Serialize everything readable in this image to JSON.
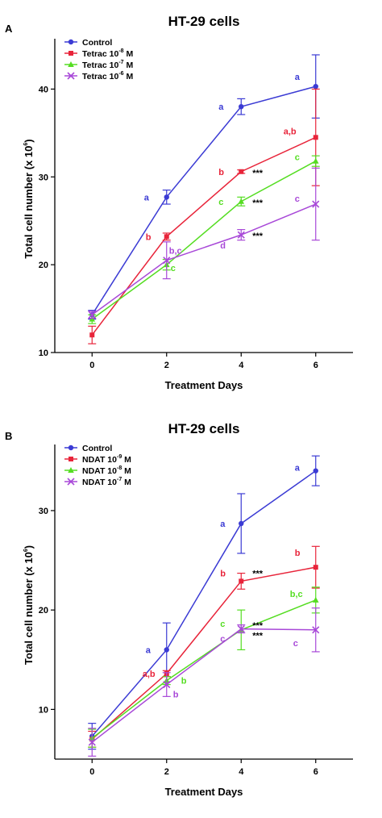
{
  "chart_data": [
    {
      "type": "line",
      "panel_label": "A",
      "title": "HT-29 cells",
      "xlabel": "Treatment Days",
      "ylabel_main": "Total cell number (x 10",
      "ylabel_sup": "6",
      "ylabel_end": ")",
      "x": [
        0,
        2,
        4,
        6
      ],
      "x_ticks": [
        "0",
        "2",
        "4",
        "6"
      ],
      "xlim": [
        -1,
        7
      ],
      "ylim": [
        10,
        45
      ],
      "y_ticks": [
        10,
        20,
        30,
        40
      ],
      "y_tick_labels": [
        "10",
        "20",
        "30",
        "40"
      ],
      "legend_position": "top-left",
      "series": [
        {
          "name": "Control",
          "legend_base": "Control",
          "legend_sup": "",
          "legend_end": "",
          "color": "#3b3bd4",
          "marker": "circle",
          "values": [
            14.3,
            27.7,
            38.0,
            40.3
          ],
          "errors": [
            0.5,
            0.8,
            0.9,
            3.6
          ]
        },
        {
          "name": "Tetrac 10-8 M",
          "legend_base": "Tetrac 10",
          "legend_sup": "-8",
          "legend_end": " M",
          "color": "#e8243a",
          "marker": "square",
          "values": [
            12.0,
            23.2,
            30.6,
            34.5
          ],
          "errors": [
            1.0,
            0.4,
            0.2,
            5.5
          ]
        },
        {
          "name": "Tetrac 10-7 M",
          "legend_base": "Tetrac 10",
          "legend_sup": "-7",
          "legend_end": " M",
          "color": "#55dd22",
          "marker": "triangle",
          "values": [
            13.8,
            20.0,
            27.2,
            31.8
          ],
          "errors": [
            0.5,
            0.6,
            0.5,
            0.6
          ]
        },
        {
          "name": "Tetrac 10-6 M",
          "legend_base": "Tetrac 10",
          "legend_sup": "-6",
          "legend_end": " M",
          "color": "#a848d8",
          "marker": "cross",
          "values": [
            14.3,
            20.5,
            23.4,
            26.9
          ],
          "errors": [
            0.4,
            2.1,
            0.6,
            4.1
          ]
        }
      ],
      "annotations": [
        {
          "text": "a",
          "x": 2,
          "y": 27.7,
          "color": "#3b3bd4",
          "dx": -28,
          "dy": 4
        },
        {
          "text": "a",
          "x": 4,
          "y": 38.0,
          "color": "#3b3bd4",
          "dx": -28,
          "dy": 4
        },
        {
          "text": "a",
          "x": 6,
          "y": 40.3,
          "color": "#3b3bd4",
          "dx": -26,
          "dy": -8
        },
        {
          "text": "b",
          "x": 2,
          "y": 23.2,
          "color": "#e8243a",
          "dx": -26,
          "dy": 4
        },
        {
          "text": "b",
          "x": 4,
          "y": 30.6,
          "color": "#e8243a",
          "dx": -28,
          "dy": 4
        },
        {
          "text": "a,b",
          "x": 6,
          "y": 34.5,
          "color": "#e8243a",
          "dx": -40,
          "dy": -4
        },
        {
          "text": "b,c",
          "x": 2,
          "y": 20.5,
          "color": "#a848d8",
          "dx": 3,
          "dy": -8
        },
        {
          "text": "c",
          "x": 2,
          "y": 20.0,
          "color": "#55dd22",
          "dx": 5,
          "dy": 8
        },
        {
          "text": "c",
          "x": 4,
          "y": 27.2,
          "color": "#55dd22",
          "dx": -28,
          "dy": 4
        },
        {
          "text": "c",
          "x": 6,
          "y": 31.8,
          "color": "#55dd22",
          "dx": -26,
          "dy": -1
        },
        {
          "text": "d",
          "x": 4,
          "y": 23.4,
          "color": "#a848d8",
          "dx": -26,
          "dy": 17
        },
        {
          "text": "c",
          "x": 6,
          "y": 26.9,
          "color": "#a848d8",
          "dx": -26,
          "dy": -3
        }
      ],
      "stars": [
        {
          "text": "***",
          "x": 4,
          "y": 30.6,
          "dx": 14,
          "dy": 5
        },
        {
          "text": "***",
          "x": 4,
          "y": 27.2,
          "dx": 14,
          "dy": 5
        },
        {
          "text": "***",
          "x": 4,
          "y": 23.4,
          "dx": 14,
          "dy": 5
        }
      ]
    },
    {
      "type": "line",
      "panel_label": "B",
      "title": "HT-29 cells",
      "xlabel": "Treatment Days",
      "ylabel_main": "Total cell number (x 10",
      "ylabel_sup": "6",
      "ylabel_end": ")",
      "x": [
        0,
        2,
        4,
        6
      ],
      "x_ticks": [
        "0",
        "2",
        "4",
        "6"
      ],
      "xlim": [
        -1,
        7
      ],
      "ylim": [
        5,
        36
      ],
      "y_ticks": [
        10,
        20,
        30
      ],
      "y_tick_labels": [
        "10",
        "20",
        "30"
      ],
      "legend_position": "top-left",
      "series": [
        {
          "name": "Control",
          "legend_base": "Control",
          "legend_sup": "",
          "legend_end": "",
          "color": "#3b3bd4",
          "marker": "circle",
          "values": [
            7.3,
            16.0,
            28.7,
            34.0
          ],
          "errors": [
            1.3,
            2.7,
            3.0,
            1.5
          ]
        },
        {
          "name": "NDAT 10-9 M",
          "legend_base": "NDAT 10",
          "legend_sup": "-9",
          "legend_end": " M",
          "color": "#e8243a",
          "marker": "square",
          "values": [
            7.0,
            13.6,
            22.9,
            24.3
          ],
          "errors": [
            0.8,
            0.3,
            0.8,
            2.1
          ]
        },
        {
          "name": "NDAT 10-8 M",
          "legend_base": "NDAT 10",
          "legend_sup": "-8",
          "legend_end": " M",
          "color": "#55dd22",
          "marker": "triangle",
          "values": [
            7.1,
            12.9,
            18.0,
            21.0
          ],
          "errors": [
            0.9,
            0.4,
            2.0,
            1.3
          ]
        },
        {
          "name": "NDAT 10-7 M",
          "legend_base": "NDAT 10",
          "legend_sup": "-7",
          "legend_end": " M",
          "color": "#a848d8",
          "marker": "cross",
          "values": [
            6.7,
            12.5,
            18.1,
            18.0
          ],
          "errors": [
            1.4,
            1.2,
            0.4,
            2.2
          ]
        }
      ],
      "annotations": [
        {
          "text": "a",
          "x": 2,
          "y": 16.0,
          "color": "#3b3bd4",
          "dx": -26,
          "dy": 4
        },
        {
          "text": "a",
          "x": 4,
          "y": 28.7,
          "color": "#3b3bd4",
          "dx": -26,
          "dy": 4
        },
        {
          "text": "a",
          "x": 6,
          "y": 34.0,
          "color": "#3b3bd4",
          "dx": -26,
          "dy": 0
        },
        {
          "text": "a,b",
          "x": 2,
          "y": 13.6,
          "color": "#e8243a",
          "dx": -30,
          "dy": 4
        },
        {
          "text": "b",
          "x": 4,
          "y": 22.9,
          "color": "#e8243a",
          "dx": -26,
          "dy": -6
        },
        {
          "text": "b",
          "x": 6,
          "y": 24.3,
          "color": "#e8243a",
          "dx": -26,
          "dy": -14
        },
        {
          "text": "b",
          "x": 2,
          "y": 12.9,
          "color": "#55dd22",
          "dx": 18,
          "dy": 4
        },
        {
          "text": "c",
          "x": 4,
          "y": 18.0,
          "color": "#55dd22",
          "dx": -26,
          "dy": -4
        },
        {
          "text": "b,c",
          "x": 6,
          "y": 21.0,
          "color": "#55dd22",
          "dx": -32,
          "dy": -4
        },
        {
          "text": "b",
          "x": 2,
          "y": 12.5,
          "color": "#a848d8",
          "dx": 8,
          "dy": 16
        },
        {
          "text": "c",
          "x": 4,
          "y": 18.1,
          "color": "#a848d8",
          "dx": -26,
          "dy": 16
        },
        {
          "text": "c",
          "x": 6,
          "y": 18.0,
          "color": "#a848d8",
          "dx": -28,
          "dy": 20
        }
      ],
      "stars": [
        {
          "text": "***",
          "x": 4,
          "y": 22.9,
          "dx": 14,
          "dy": -6
        },
        {
          "text": "***",
          "x": 4,
          "y": 18.0,
          "dx": 14,
          "dy": -2
        },
        {
          "text": "***",
          "x": 4,
          "y": 18.1,
          "dx": 14,
          "dy": 12
        }
      ]
    }
  ]
}
